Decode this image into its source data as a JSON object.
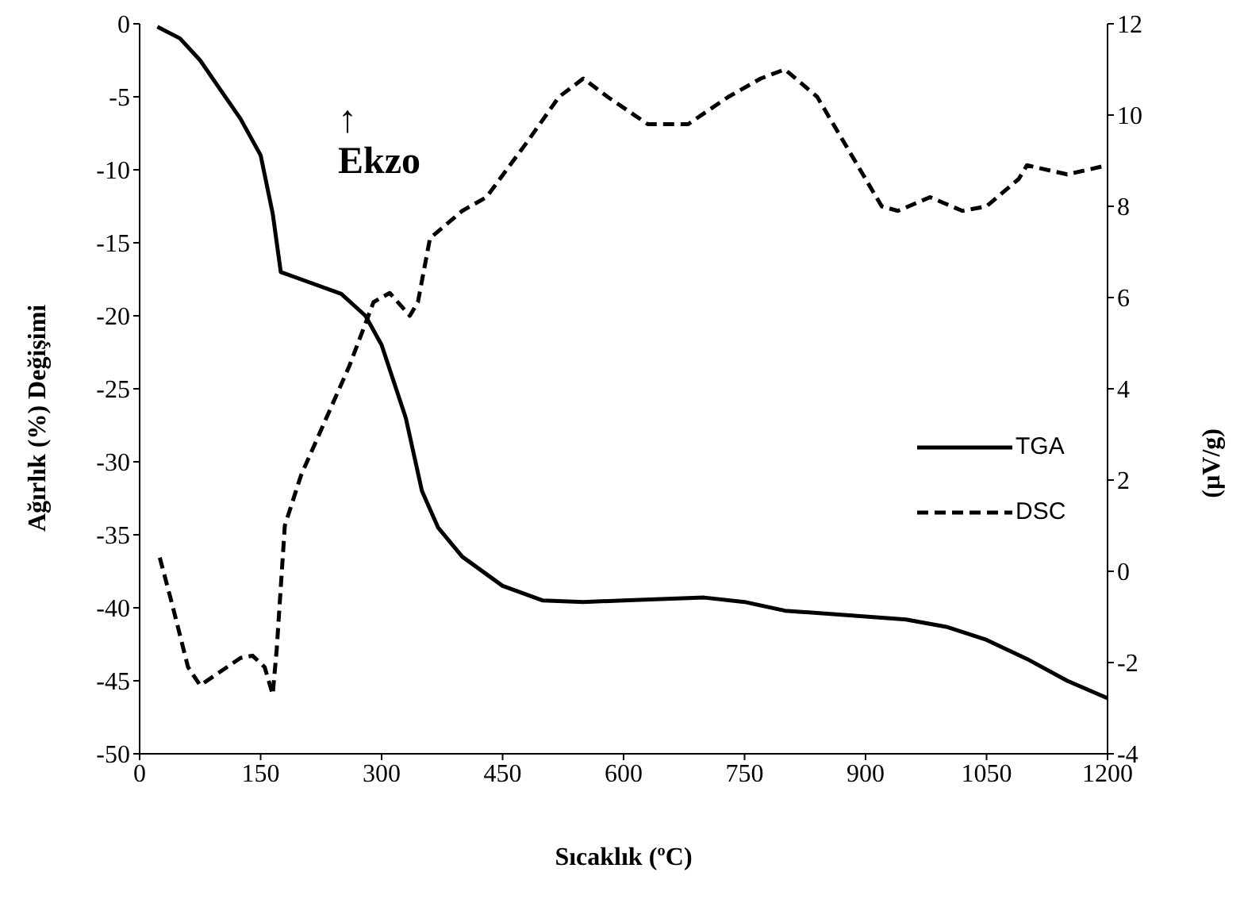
{
  "chart_data": {
    "type": "line",
    "xlabel": "Sıcaklık (ºC)",
    "ylabel": "Ağırlık (%) Değişimi",
    "y2label": "(µV/g)",
    "annotations": [
      "↑\nEkzo"
    ],
    "xlim": [
      0,
      1200
    ],
    "xticks": [
      0,
      150,
      300,
      450,
      600,
      750,
      900,
      1050,
      1200
    ],
    "ylim": [
      -50,
      0
    ],
    "yticks": [
      -50,
      -45,
      -40,
      -35,
      -30,
      -25,
      -20,
      -15,
      -10,
      -5,
      0
    ],
    "y2lim": [
      -4,
      12
    ],
    "y2ticks": [
      -4,
      -2,
      0,
      2,
      4,
      6,
      8,
      10,
      12
    ],
    "grid": false,
    "legend": "right",
    "marker": "none",
    "series": [
      {
        "name": "TGA",
        "color": "#000000",
        "line_style": "solid",
        "x": [
          22,
          50,
          75,
          100,
          125,
          150,
          165,
          175,
          200,
          250,
          280,
          300,
          330,
          350,
          370,
          400,
          450,
          500,
          550,
          600,
          700,
          750,
          800,
          900,
          950,
          1000,
          1050,
          1100,
          1150,
          1200
        ],
        "values": [
          -0.2,
          -1,
          -2.5,
          -4.5,
          -6.5,
          -9,
          -13,
          -17,
          -17.5,
          -18.5,
          -20,
          -22,
          -27,
          -32,
          -34.5,
          -36.5,
          -38.5,
          -39.5,
          -39.6,
          -39.5,
          -39.3,
          -39.6,
          -40.2,
          -40.6,
          -40.8,
          -41.3,
          -42.2,
          -43.5,
          -45,
          -46.2
        ]
      },
      {
        "name": "DSC",
        "color": "#000000",
        "line_style": "dashed",
        "axis": "y2",
        "x": [
          25,
          40,
          60,
          75,
          100,
          125,
          140,
          155,
          165,
          170,
          180,
          200,
          230,
          260,
          290,
          310,
          335,
          345,
          360,
          400,
          430,
          480,
          520,
          550,
          580,
          630,
          680,
          730,
          770,
          800,
          840,
          880,
          920,
          940,
          980,
          1020,
          1050,
          1090,
          1100,
          1150,
          1200
        ],
        "values": [
          0.3,
          -0.7,
          -2.1,
          -2.5,
          -2.2,
          -1.9,
          -1.85,
          -2.1,
          -2.7,
          -1.7,
          1,
          2.1,
          3.3,
          4.5,
          5.9,
          6.1,
          5.6,
          5.9,
          7.3,
          7.9,
          8.2,
          9.4,
          10.4,
          10.8,
          10.4,
          9.8,
          9.8,
          10.4,
          10.8,
          11,
          10.4,
          9.2,
          8,
          7.9,
          8.2,
          7.9,
          8,
          8.6,
          8.9,
          8.7,
          8.9
        ]
      }
    ]
  }
}
